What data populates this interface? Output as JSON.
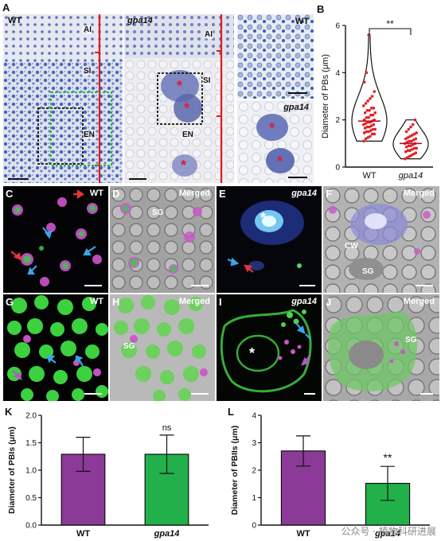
{
  "panels": {
    "A": {
      "label": "A",
      "sub1": "WT",
      "sub2": "gpa14",
      "sub3": "WT",
      "sub4": "gpa14",
      "regions": [
        "AI",
        "SI",
        "EN"
      ]
    },
    "B": {
      "label": "B"
    },
    "C": {
      "label": "C",
      "sub": "WT"
    },
    "D": {
      "label": "D",
      "sub": "Merged",
      "inside": "SG"
    },
    "E": {
      "label": "E",
      "sub": "gpa14",
      "star": "*"
    },
    "F": {
      "label": "F",
      "sub": "Merged",
      "cw": "CW",
      "sg": "SG"
    },
    "G": {
      "label": "G",
      "sub": "WT"
    },
    "H": {
      "label": "H",
      "sub": "Merged",
      "sg": "SG"
    },
    "I": {
      "label": "I",
      "sub": "gpa14",
      "star": "*"
    },
    "J": {
      "label": "J",
      "sub": "Merged",
      "sg": "SG"
    },
    "K": {
      "label": "K"
    },
    "L": {
      "label": "L"
    }
  },
  "chart_data": [
    {
      "id": "B",
      "type": "scatter",
      "ylabel": "Diameter of PBs (μm)",
      "categories": [
        "WT",
        "gpa14"
      ],
      "ylim": [
        0,
        6
      ],
      "yticks": [
        "0",
        "2",
        "4",
        "6"
      ],
      "annotation": "**",
      "series": [
        {
          "name": "WT",
          "values": [
            5.6,
            4.0,
            3.6,
            3.2,
            3.0,
            2.9,
            2.8,
            2.7,
            2.6,
            2.5,
            2.5,
            2.4,
            2.4,
            2.3,
            2.3,
            2.2,
            2.2,
            2.1,
            2.1,
            2.0,
            2.0,
            1.95,
            1.9,
            1.9,
            1.85,
            1.8,
            1.8,
            1.75,
            1.7,
            1.7,
            1.65,
            1.6,
            1.6,
            1.55,
            1.5,
            1.5,
            1.45,
            1.4,
            1.4,
            1.3,
            1.25,
            1.2,
            1.1
          ]
        },
        {
          "name": "gpa14",
          "values": [
            2.0,
            1.8,
            1.7,
            1.6,
            1.5,
            1.45,
            1.4,
            1.35,
            1.3,
            1.25,
            1.2,
            1.2,
            1.15,
            1.1,
            1.1,
            1.05,
            1.0,
            1.0,
            0.95,
            0.9,
            0.9,
            0.85,
            0.8,
            0.8,
            0.75,
            0.7,
            0.7,
            0.65,
            0.6,
            0.55,
            0.5,
            0.45,
            0.4,
            0.35
          ]
        }
      ],
      "colors": {
        "outline": "#111111",
        "fill": "#ffffff",
        "points": "#e0212b",
        "points_alt": "#b01822"
      }
    },
    {
      "id": "K",
      "type": "bar",
      "ylabel": "Diameter of PBIs (μm)",
      "categories": [
        "WT",
        "gpa14"
      ],
      "values": [
        1.29,
        1.29
      ],
      "errors": [
        0.31,
        0.35
      ],
      "ylim": [
        0,
        2.0
      ],
      "yticks": [
        "0.0",
        "0.5",
        "1.0",
        "1.5",
        "2.0"
      ],
      "annotation": "ns",
      "colors": [
        "#8c3a98",
        "#22b04b"
      ]
    },
    {
      "id": "L",
      "type": "bar",
      "ylabel": "Diameter of PBIIs (μm)",
      "categories": [
        "WT",
        "gpa14"
      ],
      "values": [
        2.7,
        1.52
      ],
      "errors": [
        0.55,
        0.62
      ],
      "ylim": [
        0,
        4
      ],
      "yticks": [
        "0",
        "1",
        "2",
        "3",
        "4"
      ],
      "annotation": "**",
      "colors": [
        "#8c3a98",
        "#22b04b"
      ]
    }
  ],
  "watermark": "公众号 · 植物科研进展"
}
